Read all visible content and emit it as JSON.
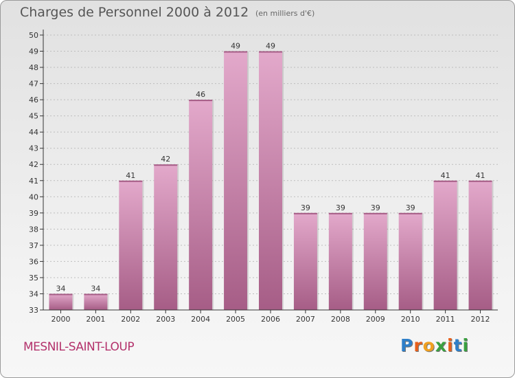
{
  "header": {
    "title": "Charges de Personnel 2000 à 2012",
    "subtitle": "(en milliers d'€)"
  },
  "footer": {
    "city": "MESNIL-SAINT-LOUP",
    "brand": {
      "letters": [
        "P",
        "r",
        "o",
        "x",
        "i",
        "t",
        "i"
      ],
      "colors": [
        "#2f7fc8",
        "#e8601c",
        "#f0a020",
        "#3aa040",
        "#e8601c",
        "#2f7fc8",
        "#3aa040"
      ]
    }
  },
  "colors": {
    "bar": "#c2729f",
    "bar_light": "#e3a9cb",
    "bar_dark": "#a65d86",
    "axis": "#333333",
    "grid": "#bdbdbd"
  },
  "chart_data": {
    "type": "bar",
    "title": "Charges de Personnel 2000 à 2012",
    "subtitle": "(en milliers d'€)",
    "categories": [
      "2000",
      "2001",
      "2002",
      "2003",
      "2004",
      "2005",
      "2006",
      "2007",
      "2008",
      "2009",
      "2010",
      "2011",
      "2012"
    ],
    "values": [
      34,
      34,
      41,
      42,
      46,
      49,
      49,
      39,
      39,
      39,
      39,
      41,
      41
    ],
    "value_labels": [
      "34",
      "34",
      "41",
      "42",
      "46",
      "49",
      "49",
      "39",
      "39",
      "39",
      "39",
      "41",
      "41"
    ],
    "ylim": [
      33,
      50
    ],
    "yticks": [
      "33",
      "34",
      "35",
      "36",
      "37",
      "38",
      "39",
      "40",
      "41",
      "42",
      "43",
      "44",
      "45",
      "46",
      "47",
      "48",
      "49",
      "50"
    ],
    "xlabel": "",
    "ylabel": "",
    "grid": true,
    "legend": "none"
  }
}
